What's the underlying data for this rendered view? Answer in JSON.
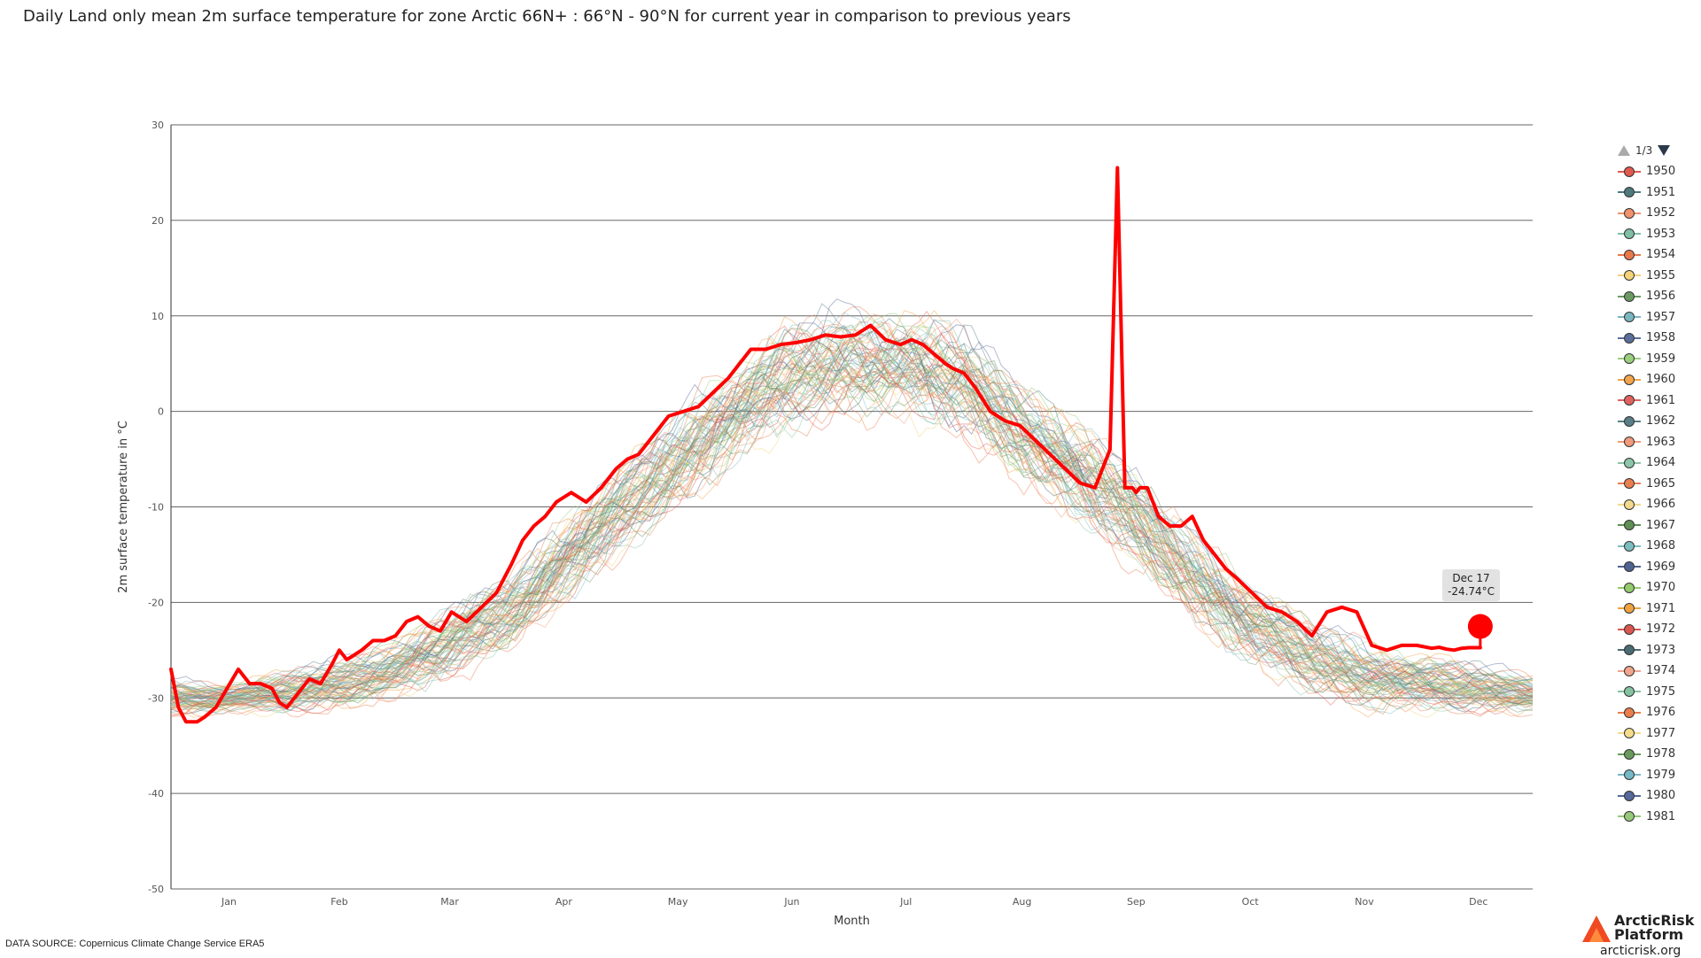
{
  "title": "Daily Land only mean 2m surface temperature for zone Arctic 66N+ : 66°N - 90°N for current year in comparison to previous years",
  "data_source": "DATA SOURCE: Copernicus Climate Change Service ERA5",
  "logo": {
    "line1": "ArcticRisk",
    "line2": "Platform",
    "url": "arcticrisk.org"
  },
  "tooltip": {
    "date": "Dec 17",
    "value": "-24.74°C"
  },
  "legend": {
    "page": "1/3",
    "items": [
      "1950",
      "1951",
      "1952",
      "1953",
      "1954",
      "1955",
      "1956",
      "1957",
      "1958",
      "1959",
      "1960",
      "1961",
      "1962",
      "1963",
      "1964",
      "1965",
      "1966",
      "1967",
      "1968",
      "1969",
      "1970",
      "1971",
      "1972",
      "1973",
      "1974",
      "1975",
      "1976",
      "1977",
      "1978",
      "1979",
      "1980",
      "1981"
    ],
    "colors": [
      "#e05a4e",
      "#4e7a7e",
      "#f0926e",
      "#7fbfa5",
      "#e8794a",
      "#f3d27a",
      "#6a9a62",
      "#79b7c0",
      "#5b6f9a",
      "#9bcf7d",
      "#f2a54a",
      "#e0625e",
      "#5a7f86",
      "#f19a7a",
      "#8cc5a8",
      "#eb7f52",
      "#f2d98c",
      "#5f8f55",
      "#7cbdbf",
      "#4f6291",
      "#93cb6f",
      "#f0a23f",
      "#d9574e",
      "#4a6c72",
      "#f0a58c",
      "#86c3a0",
      "#ea7f4e",
      "#f5dc8a",
      "#6b9b5c",
      "#77b8c5",
      "#56699b",
      "#96c97a"
    ]
  },
  "chart_data": {
    "type": "line",
    "title": "Daily Land only mean 2m surface temperature for zone Arctic 66N+ : 66°N - 90°N for current year in comparison to previous years",
    "xlabel": "Month",
    "ylabel": "2m surface temperature in °C",
    "x_ticks": [
      "Jan",
      "Feb",
      "Mar",
      "Apr",
      "May",
      "Jun",
      "Jul",
      "Aug",
      "Sep",
      "Oct",
      "Nov",
      "Dec"
    ],
    "y_ticks": [
      30,
      20,
      10,
      0,
      -10,
      -20,
      -30,
      -40,
      -50
    ],
    "ylim": [
      -50,
      30
    ],
    "xlim_days": [
      1,
      365
    ],
    "grid": true,
    "climatology_days": [
      1,
      15,
      32,
      46,
      60,
      75,
      91,
      105,
      121,
      135,
      152,
      166,
      182,
      196,
      213,
      227,
      244,
      258,
      274,
      288,
      305,
      319,
      335,
      349,
      365
    ],
    "climatology_mean": [
      -30,
      -30,
      -29.5,
      -28.5,
      -27,
      -24.5,
      -21,
      -16,
      -10.5,
      -5.5,
      0,
      3.5,
      5.5,
      5,
      3,
      -1.5,
      -6.5,
      -11,
      -17,
      -22,
      -25.5,
      -27.5,
      -28.5,
      -29,
      -29.5
    ],
    "current_series": {
      "name": "current year",
      "color": "#ff0000",
      "days": [
        1,
        3,
        5,
        8,
        10,
        13,
        16,
        19,
        22,
        25,
        28,
        30,
        32,
        35,
        38,
        41,
        44,
        46,
        48,
        52,
        55,
        58,
        61,
        64,
        67,
        70,
        73,
        76,
        80,
        84,
        88,
        92,
        95,
        98,
        101,
        104,
        108,
        112,
        116,
        120,
        123,
        126,
        130,
        134,
        138,
        142,
        146,
        150,
        153,
        156,
        160,
        164,
        168,
        172,
        176,
        180,
        184,
        188,
        192,
        196,
        199,
        202,
        205,
        208,
        210,
        213,
        216,
        220,
        224,
        228,
        232,
        236,
        240,
        244,
        248,
        252,
        254,
        256,
        257,
        258,
        259,
        260,
        262,
        265,
        268,
        271,
        274,
        277,
        280,
        283,
        286,
        290,
        294,
        298,
        302,
        306,
        310,
        314,
        318,
        322,
        326,
        330,
        334,
        338,
        340,
        342,
        344,
        346,
        348,
        350,
        351
      ],
      "values": [
        -27,
        -31,
        -32.5,
        -32.5,
        -32,
        -31,
        -29,
        -27,
        -28.5,
        -28.5,
        -29,
        -30.5,
        -31,
        -29.5,
        -28,
        -28.5,
        -26.5,
        -25,
        -26,
        -25,
        -24,
        -24,
        -23.5,
        -22,
        -21.5,
        -22.5,
        -23,
        -21,
        -22,
        -20.5,
        -19,
        -16,
        -13.5,
        -12,
        -11,
        -9.5,
        -8.5,
        -9.5,
        -8,
        -6,
        -5,
        -4.5,
        -2.5,
        -0.5,
        0,
        0.5,
        2,
        3.5,
        5,
        6.5,
        6.5,
        7,
        7.2,
        7.5,
        8,
        7.8,
        8,
        9,
        7.5,
        7,
        7.5,
        7,
        6,
        5,
        4.5,
        4,
        2.5,
        0,
        -1,
        -1.5,
        -3,
        -4.5,
        -6,
        -7.5,
        -8,
        -4,
        25.5,
        -8,
        -8,
        -8,
        -8.5,
        -8,
        -8,
        -11,
        -12,
        -12,
        -11,
        -13.5,
        -15,
        -16.5,
        -17.5,
        -19,
        -20.5,
        -21,
        -22,
        -23.5,
        -21,
        -20.5,
        -21,
        -24.5,
        -25,
        -24.5,
        -24.5,
        -24.8,
        -24.7,
        -24.9,
        -25,
        -24.8,
        -24.74,
        -24.74,
        -24.74
      ]
    },
    "highlight_point": {
      "day": 351,
      "value": -24.74,
      "label": "Dec 17"
    }
  }
}
